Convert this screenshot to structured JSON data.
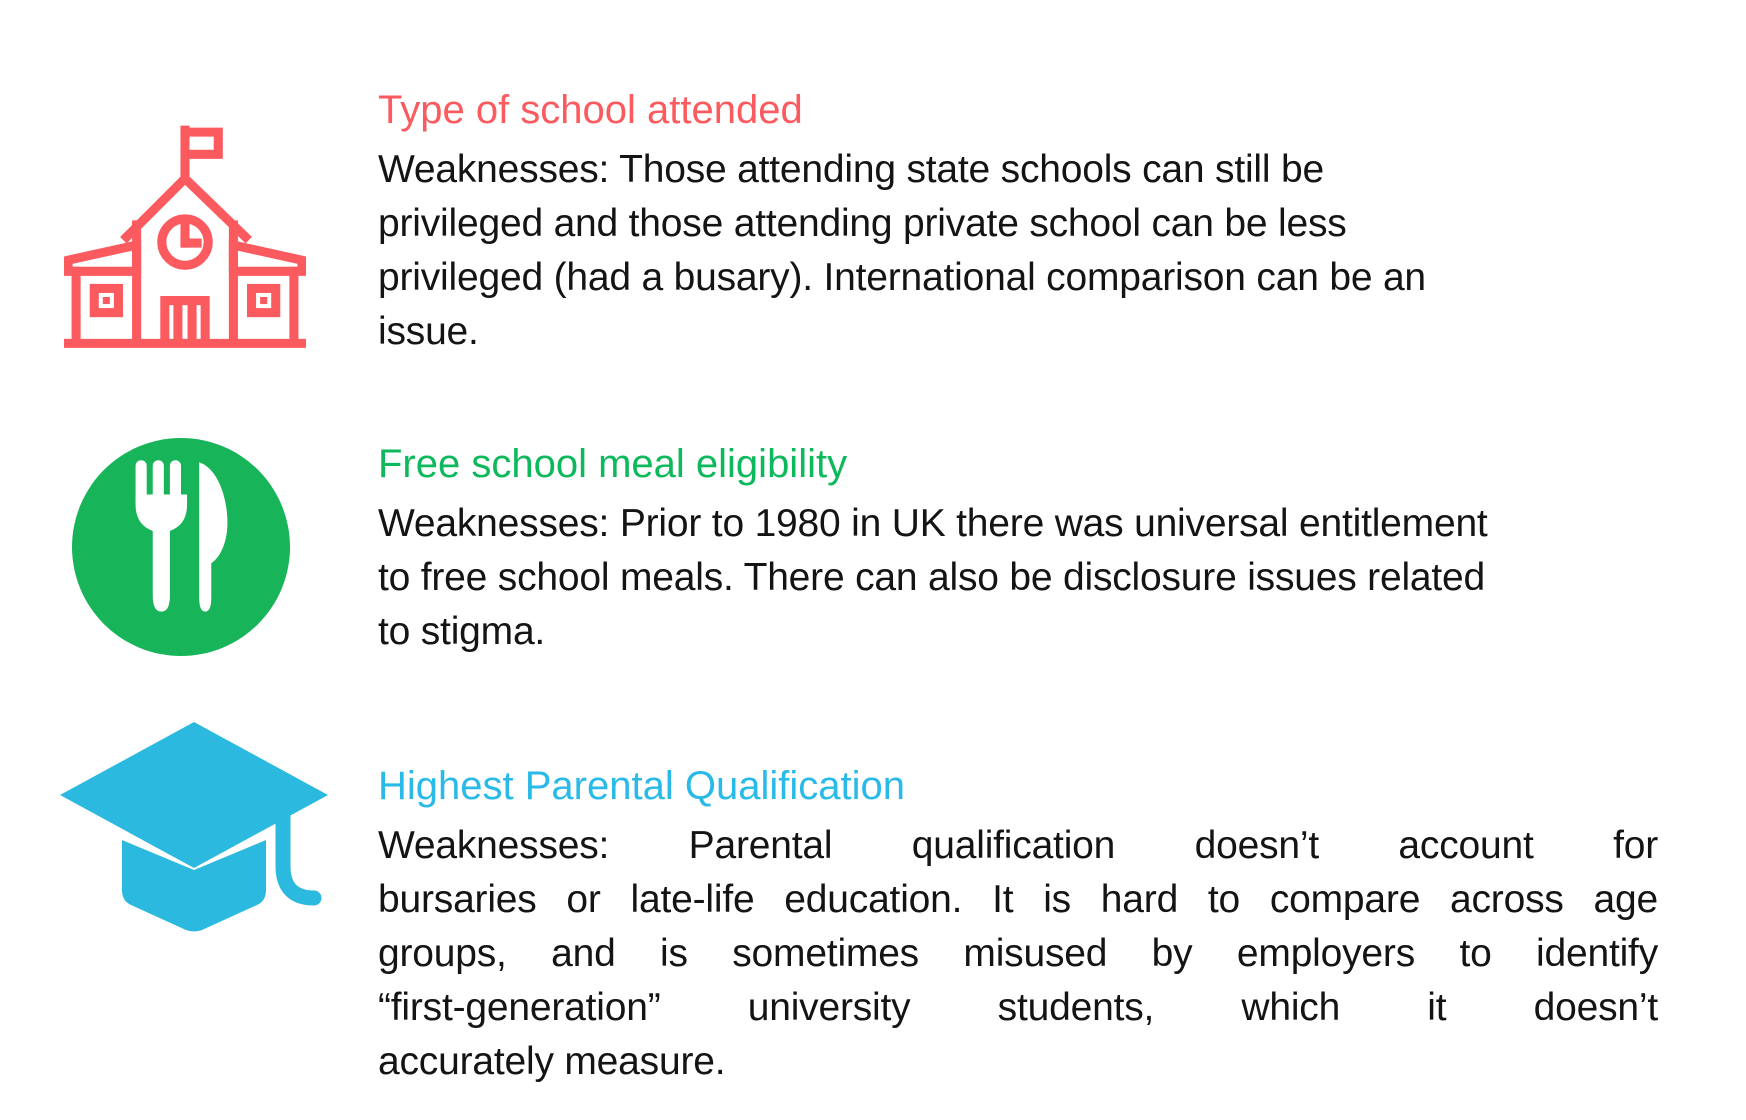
{
  "page": {
    "background_color": "#ffffff",
    "body_text_color": "#141414"
  },
  "sections": [
    {
      "heading": "Type of school attended",
      "accent_color": "#FB5A5F",
      "icon": "school-building-icon",
      "icon_style": "outline",
      "body_lines": [
        "Weaknesses: Those attending state schools can still be",
        "privileged and those attending private school can be less",
        "privileged (had a busary). International comparison can be an",
        "issue."
      ]
    },
    {
      "heading": "Free school meal eligibility",
      "accent_color": "#0EB85C",
      "icon": "fork-and-knife-icon",
      "icon_circle_color": "#17B45A",
      "icon_glyph_color": "#ffffff",
      "body_lines": [
        "Weaknesses: Prior to 1980 in UK there was universal entitlement",
        "to free school meals. There can also be disclosure issues related",
        "to stigma."
      ]
    },
    {
      "heading": "Highest Parental Qualification",
      "accent_color": "#29BAE8",
      "icon": "graduation-cap-icon",
      "icon_fill_color": "#2CB9DF",
      "body_alignment": "justify",
      "body_lines": [
        "Weaknesses: Parental qualification doesn’t account for",
        "bursaries or late-life education. It is hard to compare across age",
        "groups, and is sometimes misused by employers to identify",
        "“first-generation” university students, which it doesn’t",
        "accurately measure."
      ]
    }
  ]
}
